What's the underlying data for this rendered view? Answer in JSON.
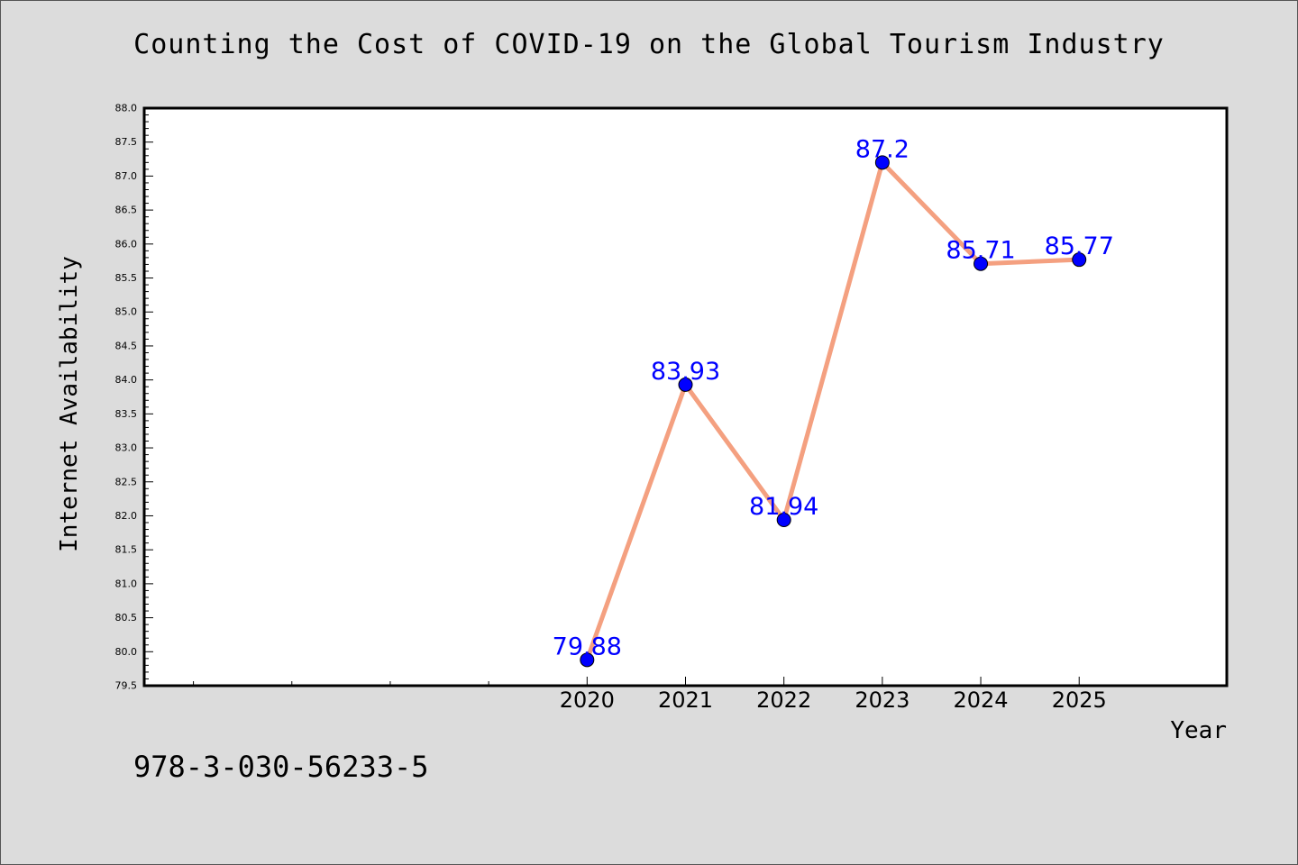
{
  "title": "Counting the Cost of COVID-19 on the Global Tourism Industry",
  "caption": "978-3-030-56233-5",
  "colors": {
    "background": "#dcdcdc",
    "plot_background": "#ffffff",
    "line": "#f4a080",
    "marker": "#0000ff",
    "data_label": "#0000ff"
  },
  "chart_data": {
    "type": "line",
    "title": "Counting the Cost of COVID-19 on the Global Tourism Industry",
    "xlabel": "Year",
    "ylabel": "Internet Availability",
    "x": [
      2020,
      2021,
      2022,
      2023,
      2024,
      2025
    ],
    "x_tick_labels": [
      "2020",
      "2021",
      "2022",
      "2023",
      "2024",
      "2025"
    ],
    "xlim": [
      2015.5,
      2026.5
    ],
    "x_minor_ticks": [
      2016,
      2017,
      2018,
      2019
    ],
    "series": [
      {
        "values": [
          79.88,
          83.93,
          81.94,
          87.2,
          85.71,
          85.77
        ],
        "labels": [
          "79.88",
          "83.93",
          "81.94",
          "87.2",
          "85.71",
          "85.77"
        ]
      }
    ],
    "ylim": [
      79.5,
      88.0
    ],
    "y_ticks": [
      79.5,
      80.0,
      80.5,
      81.0,
      81.5,
      82.0,
      82.5,
      83.0,
      83.5,
      84.0,
      84.5,
      85.0,
      85.5,
      86.0,
      86.5,
      87.0,
      87.5,
      88.0
    ],
    "y_tick_labels": [
      "79.5",
      "80.0",
      "80.5",
      "81.0",
      "81.5",
      "82.0",
      "82.5",
      "83.0",
      "83.5",
      "84.0",
      "84.5",
      "85.0",
      "85.5",
      "86.0",
      "86.5",
      "87.0",
      "87.5",
      "88.0"
    ],
    "grid": false,
    "legend": "none"
  }
}
